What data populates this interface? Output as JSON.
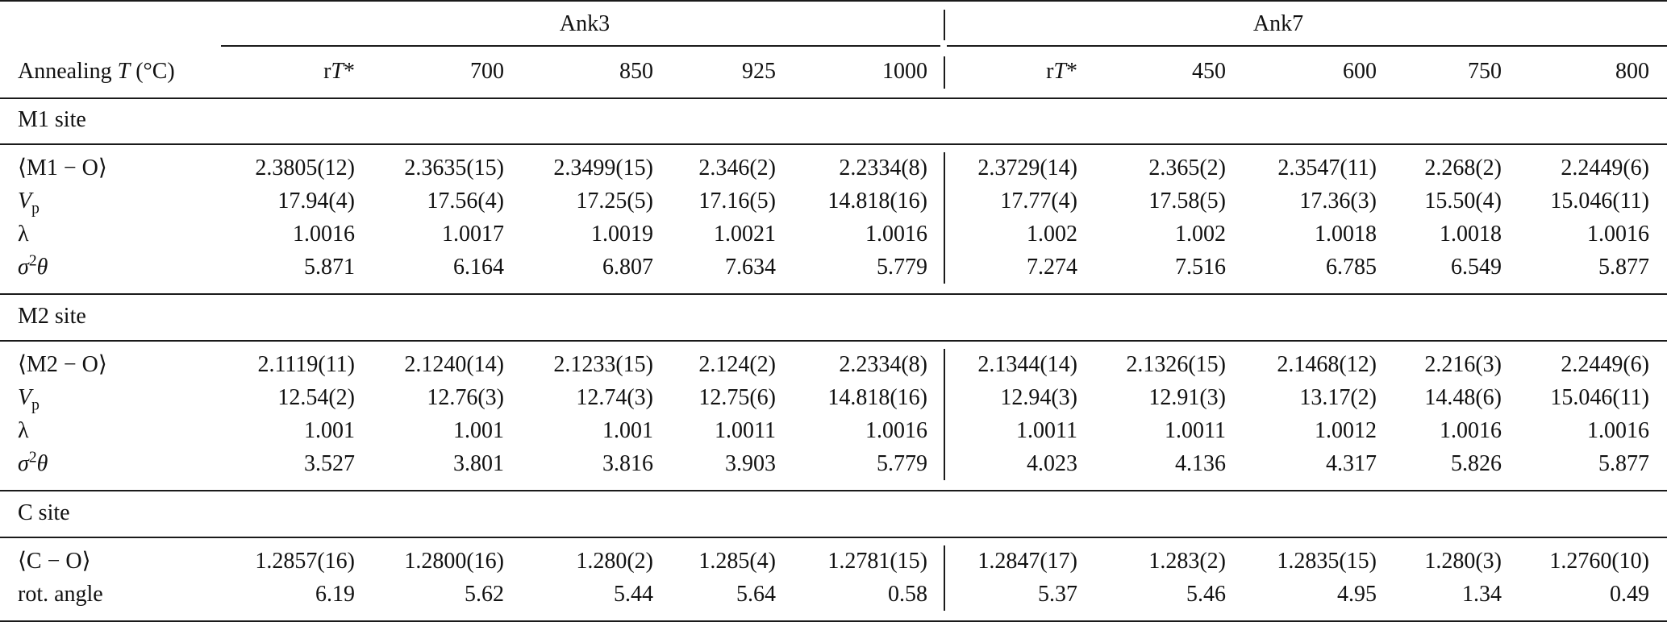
{
  "groups": [
    "Ank3",
    "Ank7"
  ],
  "header": {
    "label_prefix": "Annealing ",
    "label_var": "T",
    "label_suffix": " (°C)",
    "temps": [
      [
        "r",
        "T",
        "*"
      ],
      [
        "700"
      ],
      [
        "850"
      ],
      [
        "925"
      ],
      [
        "1000"
      ],
      [
        "r",
        "T",
        "*"
      ],
      [
        "450"
      ],
      [
        "600"
      ],
      [
        "750"
      ],
      [
        "800"
      ]
    ]
  },
  "sections": [
    {
      "title": "M1 site",
      "rows": [
        {
          "label": [
            "⟨M1 − O⟩"
          ],
          "values": [
            "2.3805(12)",
            "2.3635(15)",
            "2.3499(15)",
            "2.346(2)",
            "2.2334(8)",
            "2.3729(14)",
            "2.365(2)",
            "2.3547(11)",
            "2.268(2)",
            "2.2449(6)"
          ]
        },
        {
          "label": [
            "V",
            "p"
          ],
          "values": [
            "17.94(4)",
            "17.56(4)",
            "17.25(5)",
            "17.16(5)",
            "14.818(16)",
            "17.77(4)",
            "17.58(5)",
            "17.36(3)",
            "15.50(4)",
            "15.046(11)"
          ]
        },
        {
          "label": [
            "λ"
          ],
          "values": [
            "1.0016",
            "1.0017",
            "1.0019",
            "1.0021",
            "1.0016",
            "1.002",
            "1.002",
            "1.0018",
            "1.0018",
            "1.0016"
          ]
        },
        {
          "label": [
            "σ",
            "2",
            "θ"
          ],
          "values": [
            "5.871",
            "6.164",
            "6.807",
            "7.634",
            "5.779",
            "7.274",
            "7.516",
            "6.785",
            "6.549",
            "5.877"
          ]
        }
      ]
    },
    {
      "title": "M2 site",
      "rows": [
        {
          "label": [
            "⟨M2 − O⟩"
          ],
          "values": [
            "2.1119(11)",
            "2.1240(14)",
            "2.1233(15)",
            "2.124(2)",
            "2.2334(8)",
            "2.1344(14)",
            "2.1326(15)",
            "2.1468(12)",
            "2.216(3)",
            "2.2449(6)"
          ]
        },
        {
          "label": [
            "V",
            "p"
          ],
          "values": [
            "12.54(2)",
            "12.76(3)",
            "12.74(3)",
            "12.75(6)",
            "14.818(16)",
            "12.94(3)",
            "12.91(3)",
            "13.17(2)",
            "14.48(6)",
            "15.046(11)"
          ]
        },
        {
          "label": [
            "λ"
          ],
          "values": [
            "1.001",
            "1.001",
            "1.001",
            "1.0011",
            "1.0016",
            "1.0011",
            "1.0011",
            "1.0012",
            "1.0016",
            "1.0016"
          ]
        },
        {
          "label": [
            "σ",
            "2",
            "θ"
          ],
          "values": [
            "3.527",
            "3.801",
            "3.816",
            "3.903",
            "5.779",
            "4.023",
            "4.136",
            "4.317",
            "5.826",
            "5.877"
          ]
        }
      ]
    },
    {
      "title": "C site",
      "rows": [
        {
          "label": [
            "⟨C − O⟩"
          ],
          "values": [
            "1.2857(16)",
            "1.2800(16)",
            "1.280(2)",
            "1.285(4)",
            "1.2781(15)",
            "1.2847(17)",
            "1.283(2)",
            "1.2835(15)",
            "1.280(3)",
            "1.2760(10)"
          ]
        },
        {
          "label": [
            "rot. angle"
          ],
          "values": [
            "6.19",
            "5.62",
            "5.44",
            "5.64",
            "0.58",
            "5.37",
            "5.46",
            "4.95",
            "1.34",
            "0.49"
          ]
        }
      ]
    }
  ]
}
